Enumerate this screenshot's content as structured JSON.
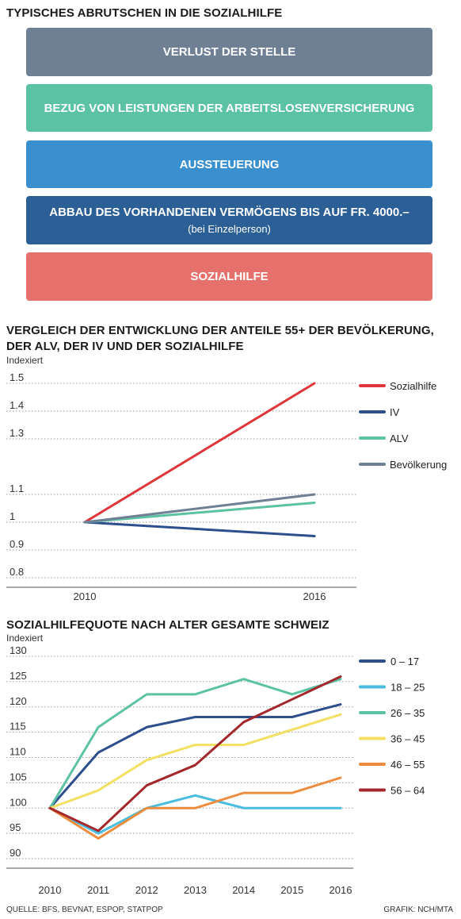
{
  "main_title": "TYPISCHES ABRUTSCHEN IN DIE SOZIALHILFE",
  "flow": [
    {
      "label": "VERLUST DER STELLE",
      "sub": "",
      "color": "#6f8094"
    },
    {
      "label": "BEZUG VON LEISTUNGEN DER ARBEITSLOSENVERSICHERUNG",
      "sub": "",
      "color": "#5cc2a4"
    },
    {
      "label": "AUSSTEUERUNG",
      "sub": "",
      "color": "#3a8fcf"
    },
    {
      "label": "ABBAU DES VORHANDENEN VERMÖGENS BIS AUF FR. 4000.–",
      "sub": "(bei Einzelperson)",
      "color": "#2b5f95"
    },
    {
      "label": "SOZIALHILFE",
      "sub": "",
      "color": "#e5706c"
    }
  ],
  "chart_data": [
    {
      "type": "line",
      "title": "VERGLEICH DER ENTWICKLUNG DER ANTEILE 55+ DER BEVÖLKERUNG, DER ALV, DER IV UND DER SOZIALHILFE",
      "ylabel": "Indexiert",
      "xlabel": "",
      "x": [
        "2010",
        "2016"
      ],
      "ylim": [
        0.8,
        1.5
      ],
      "yticks": [
        "0.8",
        "0.9",
        "1",
        "1.1",
        "1.3",
        "1.4",
        "1.5"
      ],
      "ytick_values": [
        0.8,
        0.9,
        1.0,
        1.1,
        1.3,
        1.4,
        1.5
      ],
      "grid": true,
      "legend": "right",
      "series": [
        {
          "name": "Sozialhilfe",
          "color": "#e0363b",
          "values": [
            1.0,
            1.5
          ]
        },
        {
          "name": "IV",
          "color": "#2e4f8e",
          "values": [
            1.0,
            0.95
          ]
        },
        {
          "name": "ALV",
          "color": "#5cc2a4",
          "values": [
            1.0,
            1.07
          ]
        },
        {
          "name": "Bevölkerung",
          "color": "#6f8094",
          "values": [
            1.0,
            1.1
          ]
        }
      ]
    },
    {
      "type": "line",
      "title": "SOZIALHILFEQUOTE NACH ALTER GESAMTE SCHWEIZ",
      "ylabel": "Indexiert",
      "xlabel": "",
      "x": [
        "2010",
        "2011",
        "2012",
        "2013",
        "2014",
        "2015",
        "2016"
      ],
      "ylim": [
        90,
        130
      ],
      "yticks": [
        "90",
        "95",
        "100",
        "105",
        "110",
        "115",
        "120",
        "125",
        "130"
      ],
      "ytick_values": [
        90,
        95,
        100,
        105,
        110,
        115,
        120,
        125,
        130
      ],
      "grid": true,
      "legend": "right",
      "series": [
        {
          "name": "0 – 17",
          "color": "#2e4f8e",
          "values": [
            100,
            111,
            116,
            118,
            118,
            118,
            120.5
          ]
        },
        {
          "name": "18 – 25",
          "color": "#48bde0",
          "values": [
            100,
            95,
            100,
            102.5,
            100,
            100,
            100
          ]
        },
        {
          "name": "26 – 35",
          "color": "#5cc2a4",
          "values": [
            100,
            116,
            122.5,
            122.5,
            125.5,
            122.5,
            125.5
          ]
        },
        {
          "name": "36 – 45",
          "color": "#f3e062",
          "values": [
            100,
            103.5,
            109.5,
            112.5,
            112.5,
            115.5,
            118.5
          ]
        },
        {
          "name": "46 – 55",
          "color": "#ee8c3e",
          "values": [
            100,
            94,
            100,
            100,
            103,
            103,
            106
          ]
        },
        {
          "name": "56 – 64",
          "color": "#a3272b",
          "values": [
            100,
            95.5,
            104.5,
            108.5,
            117,
            121.5,
            126
          ]
        }
      ]
    }
  ],
  "footer": {
    "source": "QUELLE: BFS, BEVNAT, ESPOP, STATPOP",
    "credit": "GRAFIK: NCH/MTA"
  }
}
